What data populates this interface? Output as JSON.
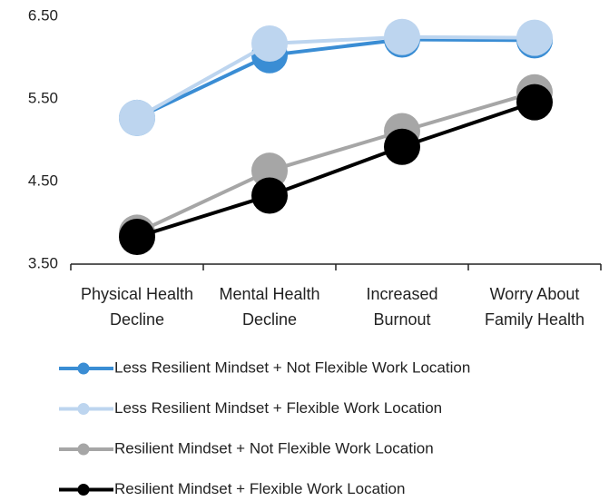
{
  "chart_data": {
    "type": "line",
    "categories": [
      "Physical Health Decline",
      "Mental Health Decline",
      "Increased Burnout",
      "Worry About Family Health"
    ],
    "series": [
      {
        "name": "Less Resilient Mindset + Not Flexible Work Location",
        "color": "#3a8dd4",
        "values": [
          5.27,
          6.03,
          6.22,
          6.21
        ]
      },
      {
        "name": "Less Resilient Mindset + Flexible Work Location",
        "color": "#bdd5ef",
        "values": [
          5.27,
          6.17,
          6.25,
          6.24
        ]
      },
      {
        "name": "Resilient Mindset + Not Flexible Work Location",
        "color": "#a6a6a6",
        "values": [
          3.88,
          4.63,
          5.11,
          5.58
        ]
      },
      {
        "name": "Resilient Mindset + Flexible Work Location",
        "color": "#000000",
        "values": [
          3.83,
          4.33,
          4.92,
          5.46
        ]
      }
    ],
    "ylim": [
      3.5,
      6.5
    ],
    "yticks": [
      {
        "value": 3.5,
        "label": "3.50"
      },
      {
        "value": 4.5,
        "label": "4.50"
      },
      {
        "value": 5.5,
        "label": "5.50"
      },
      {
        "value": 6.5,
        "label": "6.50"
      }
    ],
    "grid": false
  }
}
